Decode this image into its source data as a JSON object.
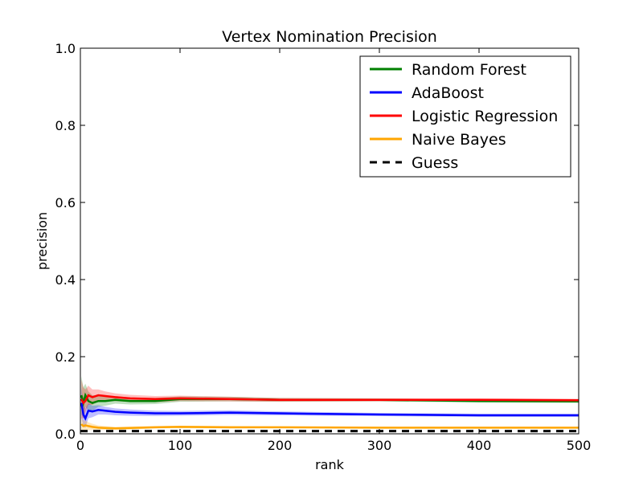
{
  "chart_data": {
    "type": "line",
    "title": "Vertex Nomination Precision",
    "xlabel": "rank",
    "ylabel": "precision",
    "xlim": [
      0,
      500
    ],
    "ylim": [
      0.0,
      1.0
    ],
    "xticks": [
      0,
      100,
      200,
      300,
      400,
      500
    ],
    "xtick_labels": [
      "0",
      "100",
      "200",
      "300",
      "400",
      "500"
    ],
    "yticks": [
      0.0,
      0.2,
      0.4,
      0.6,
      0.8,
      1.0
    ],
    "ytick_labels": [
      "0.0",
      "0.2",
      "0.4",
      "0.6",
      "0.8",
      "1.0"
    ],
    "grid": false,
    "legend_position": "top-right",
    "series": [
      {
        "name": "Random Forest",
        "color": "#008000",
        "x": [
          1,
          3,
          5,
          8,
          12,
          18,
          25,
          35,
          50,
          75,
          100,
          150,
          200,
          300,
          400,
          500
        ],
        "y": [
          0.1,
          0.08,
          0.1,
          0.085,
          0.08,
          0.085,
          0.085,
          0.088,
          0.085,
          0.085,
          0.09,
          0.09,
          0.088,
          0.088,
          0.085,
          0.084
        ],
        "band": [
          0.05,
          0.04,
          0.03,
          0.025,
          0.02,
          0.015,
          0.012,
          0.01,
          0.009,
          0.008,
          0.007,
          0.006,
          0.005,
          0.004,
          0.004,
          0.004
        ]
      },
      {
        "name": "AdaBoost",
        "color": "#0000ff",
        "x": [
          1,
          3,
          5,
          8,
          12,
          18,
          25,
          35,
          50,
          75,
          100,
          150,
          200,
          300,
          400,
          500
        ],
        "y": [
          0.08,
          0.05,
          0.04,
          0.06,
          0.058,
          0.062,
          0.06,
          0.057,
          0.055,
          0.053,
          0.053,
          0.055,
          0.053,
          0.05,
          0.048,
          0.048
        ],
        "band": [
          0.04,
          0.03,
          0.025,
          0.02,
          0.015,
          0.012,
          0.01,
          0.009,
          0.008,
          0.007,
          0.006,
          0.006,
          0.005,
          0.004,
          0.004,
          0.004
        ]
      },
      {
        "name": "Logistic Regression",
        "color": "#ff0000",
        "x": [
          1,
          3,
          5,
          8,
          12,
          18,
          25,
          35,
          50,
          75,
          100,
          150,
          200,
          300,
          400,
          500
        ],
        "y": [
          0.09,
          0.08,
          0.085,
          0.1,
          0.095,
          0.1,
          0.098,
          0.095,
          0.092,
          0.09,
          0.092,
          0.09,
          0.088,
          0.088,
          0.088,
          0.087
        ],
        "band": [
          0.05,
          0.04,
          0.03,
          0.025,
          0.02,
          0.015,
          0.012,
          0.01,
          0.009,
          0.008,
          0.007,
          0.006,
          0.005,
          0.004,
          0.004,
          0.004
        ]
      },
      {
        "name": "Naive Bayes",
        "color": "#ffa500",
        "x": [
          1,
          3,
          5,
          8,
          12,
          18,
          25,
          35,
          50,
          75,
          100,
          150,
          200,
          300,
          400,
          500
        ],
        "y": [
          0.025,
          0.02,
          0.022,
          0.02,
          0.018,
          0.016,
          0.015,
          0.014,
          0.015,
          0.017,
          0.018,
          0.017,
          0.017,
          0.016,
          0.016,
          0.016
        ],
        "band": [
          0.02,
          0.015,
          0.012,
          0.01,
          0.008,
          0.006,
          0.005,
          0.004,
          0.004,
          0.003,
          0.003,
          0.003,
          0.002,
          0.002,
          0.002,
          0.002
        ]
      },
      {
        "name": "Guess",
        "color": "#000000",
        "dashed": true,
        "x": [
          0,
          500
        ],
        "y": [
          0.007,
          0.007
        ]
      }
    ]
  }
}
